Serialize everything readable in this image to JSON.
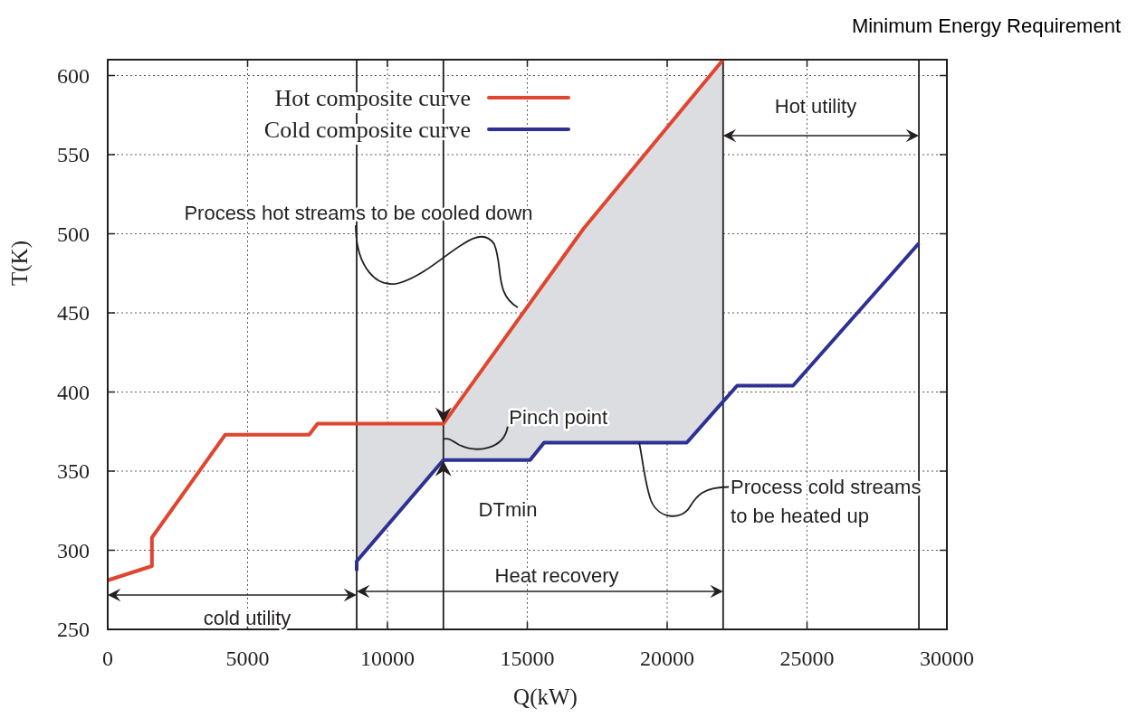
{
  "chart_data": {
    "type": "line",
    "title": "Minimum Energy Requirement",
    "xlabel": "Q(kW)",
    "ylabel": "T(K)",
    "xlim": [
      0,
      30000
    ],
    "xticks": [
      0,
      5000,
      10000,
      15000,
      20000,
      25000,
      30000
    ],
    "ylim": [
      250,
      610
    ],
    "yticks": [
      250,
      300,
      350,
      400,
      450,
      500,
      550,
      600
    ],
    "grid": true,
    "legend": "top left",
    "line_style": "solid",
    "marker": "none",
    "series": [
      {
        "name": "Hot composite curve",
        "color": "#e0452f",
        "x": [
          0,
          1580,
          1580,
          4200,
          7200,
          7500,
          12000,
          17000,
          22000
        ],
        "values": [
          281,
          290,
          308,
          373,
          373,
          380,
          380,
          503,
          610
        ]
      },
      {
        "name": "Cold composite curve",
        "color": "#2e3192",
        "x": [
          8900,
          8900,
          12000,
          15100,
          15600,
          20700,
          22500,
          24500,
          29000
        ],
        "values": [
          287,
          293,
          357,
          357,
          368,
          368,
          404,
          404,
          494
        ]
      }
    ],
    "ref_lines": [
      {
        "axis": "x",
        "value": 8900,
        "color": "#231f20"
      },
      {
        "axis": "x",
        "value": 12000,
        "color": "#231f20"
      },
      {
        "axis": "x",
        "value": 22000,
        "color": "#231f20"
      },
      {
        "axis": "x",
        "value": 29000,
        "color": "#231f20"
      }
    ],
    "annotations": [
      "Process hot streams to be cooled down",
      {
        "text": "Pinch point",
        "x": 12000,
        "y": 369
      },
      "DTmin",
      {
        "text": "Process cold streams\nto be heated up",
        "x": 19000,
        "y": 368
      },
      "Heat recovery",
      "cold utility",
      "Hot utility"
    ]
  }
}
